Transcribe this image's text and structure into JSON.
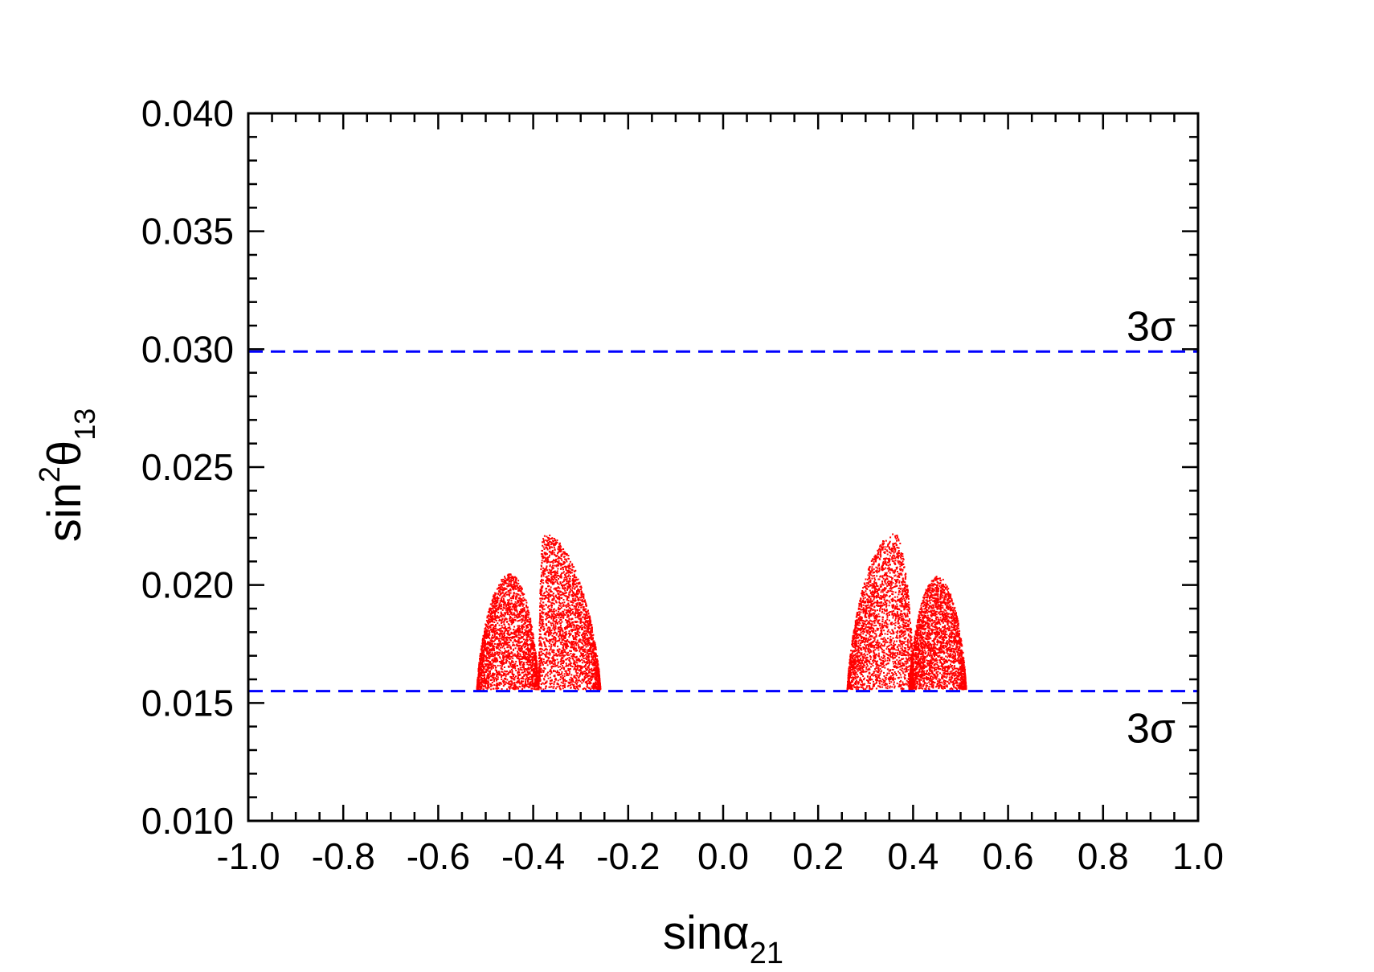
{
  "chart_data": {
    "type": "scatter",
    "title": "",
    "xlabel": "sinα",
    "xlabel_sub": "21",
    "ylabel": "sin",
    "ylabel_sup": "2",
    "ylabel_symbol": "θ",
    "ylabel_sub": "13",
    "xlim": [
      -1.0,
      1.0
    ],
    "ylim": [
      0.01,
      0.04
    ],
    "x_ticks": [
      "-1.0",
      "-0.8",
      "-0.6",
      "-0.4",
      "-0.2",
      "0.0",
      "0.2",
      "0.4",
      "0.6",
      "0.8",
      "1.0"
    ],
    "y_ticks": [
      "0.010",
      "0.015",
      "0.020",
      "0.025",
      "0.030",
      "0.035",
      "0.040"
    ],
    "grid": false,
    "series": [
      {
        "color": "#ff0000",
        "clusters": [
          {
            "x_range": [
              -0.52,
              -0.39
            ],
            "y_range": [
              0.0156,
              0.0205
            ],
            "peak_x": -0.45
          },
          {
            "x_range": [
              -0.39,
              -0.26
            ],
            "y_range": [
              0.0156,
              0.0222
            ],
            "peak_x": -0.38
          },
          {
            "x_range": [
              0.26,
              0.4
            ],
            "y_range": [
              0.0156,
              0.0222
            ],
            "peak_x": 0.36
          },
          {
            "x_range": [
              0.39,
              0.51
            ],
            "y_range": [
              0.0156,
              0.0204
            ],
            "peak_x": 0.45
          }
        ]
      }
    ],
    "reference_lines": [
      {
        "y": 0.0299,
        "label": "3σ",
        "label_position": "above",
        "color": "#0000ff",
        "style": "dashed"
      },
      {
        "y": 0.0155,
        "label": "3σ",
        "label_position": "below",
        "color": "#0000ff",
        "style": "dashed"
      }
    ]
  }
}
